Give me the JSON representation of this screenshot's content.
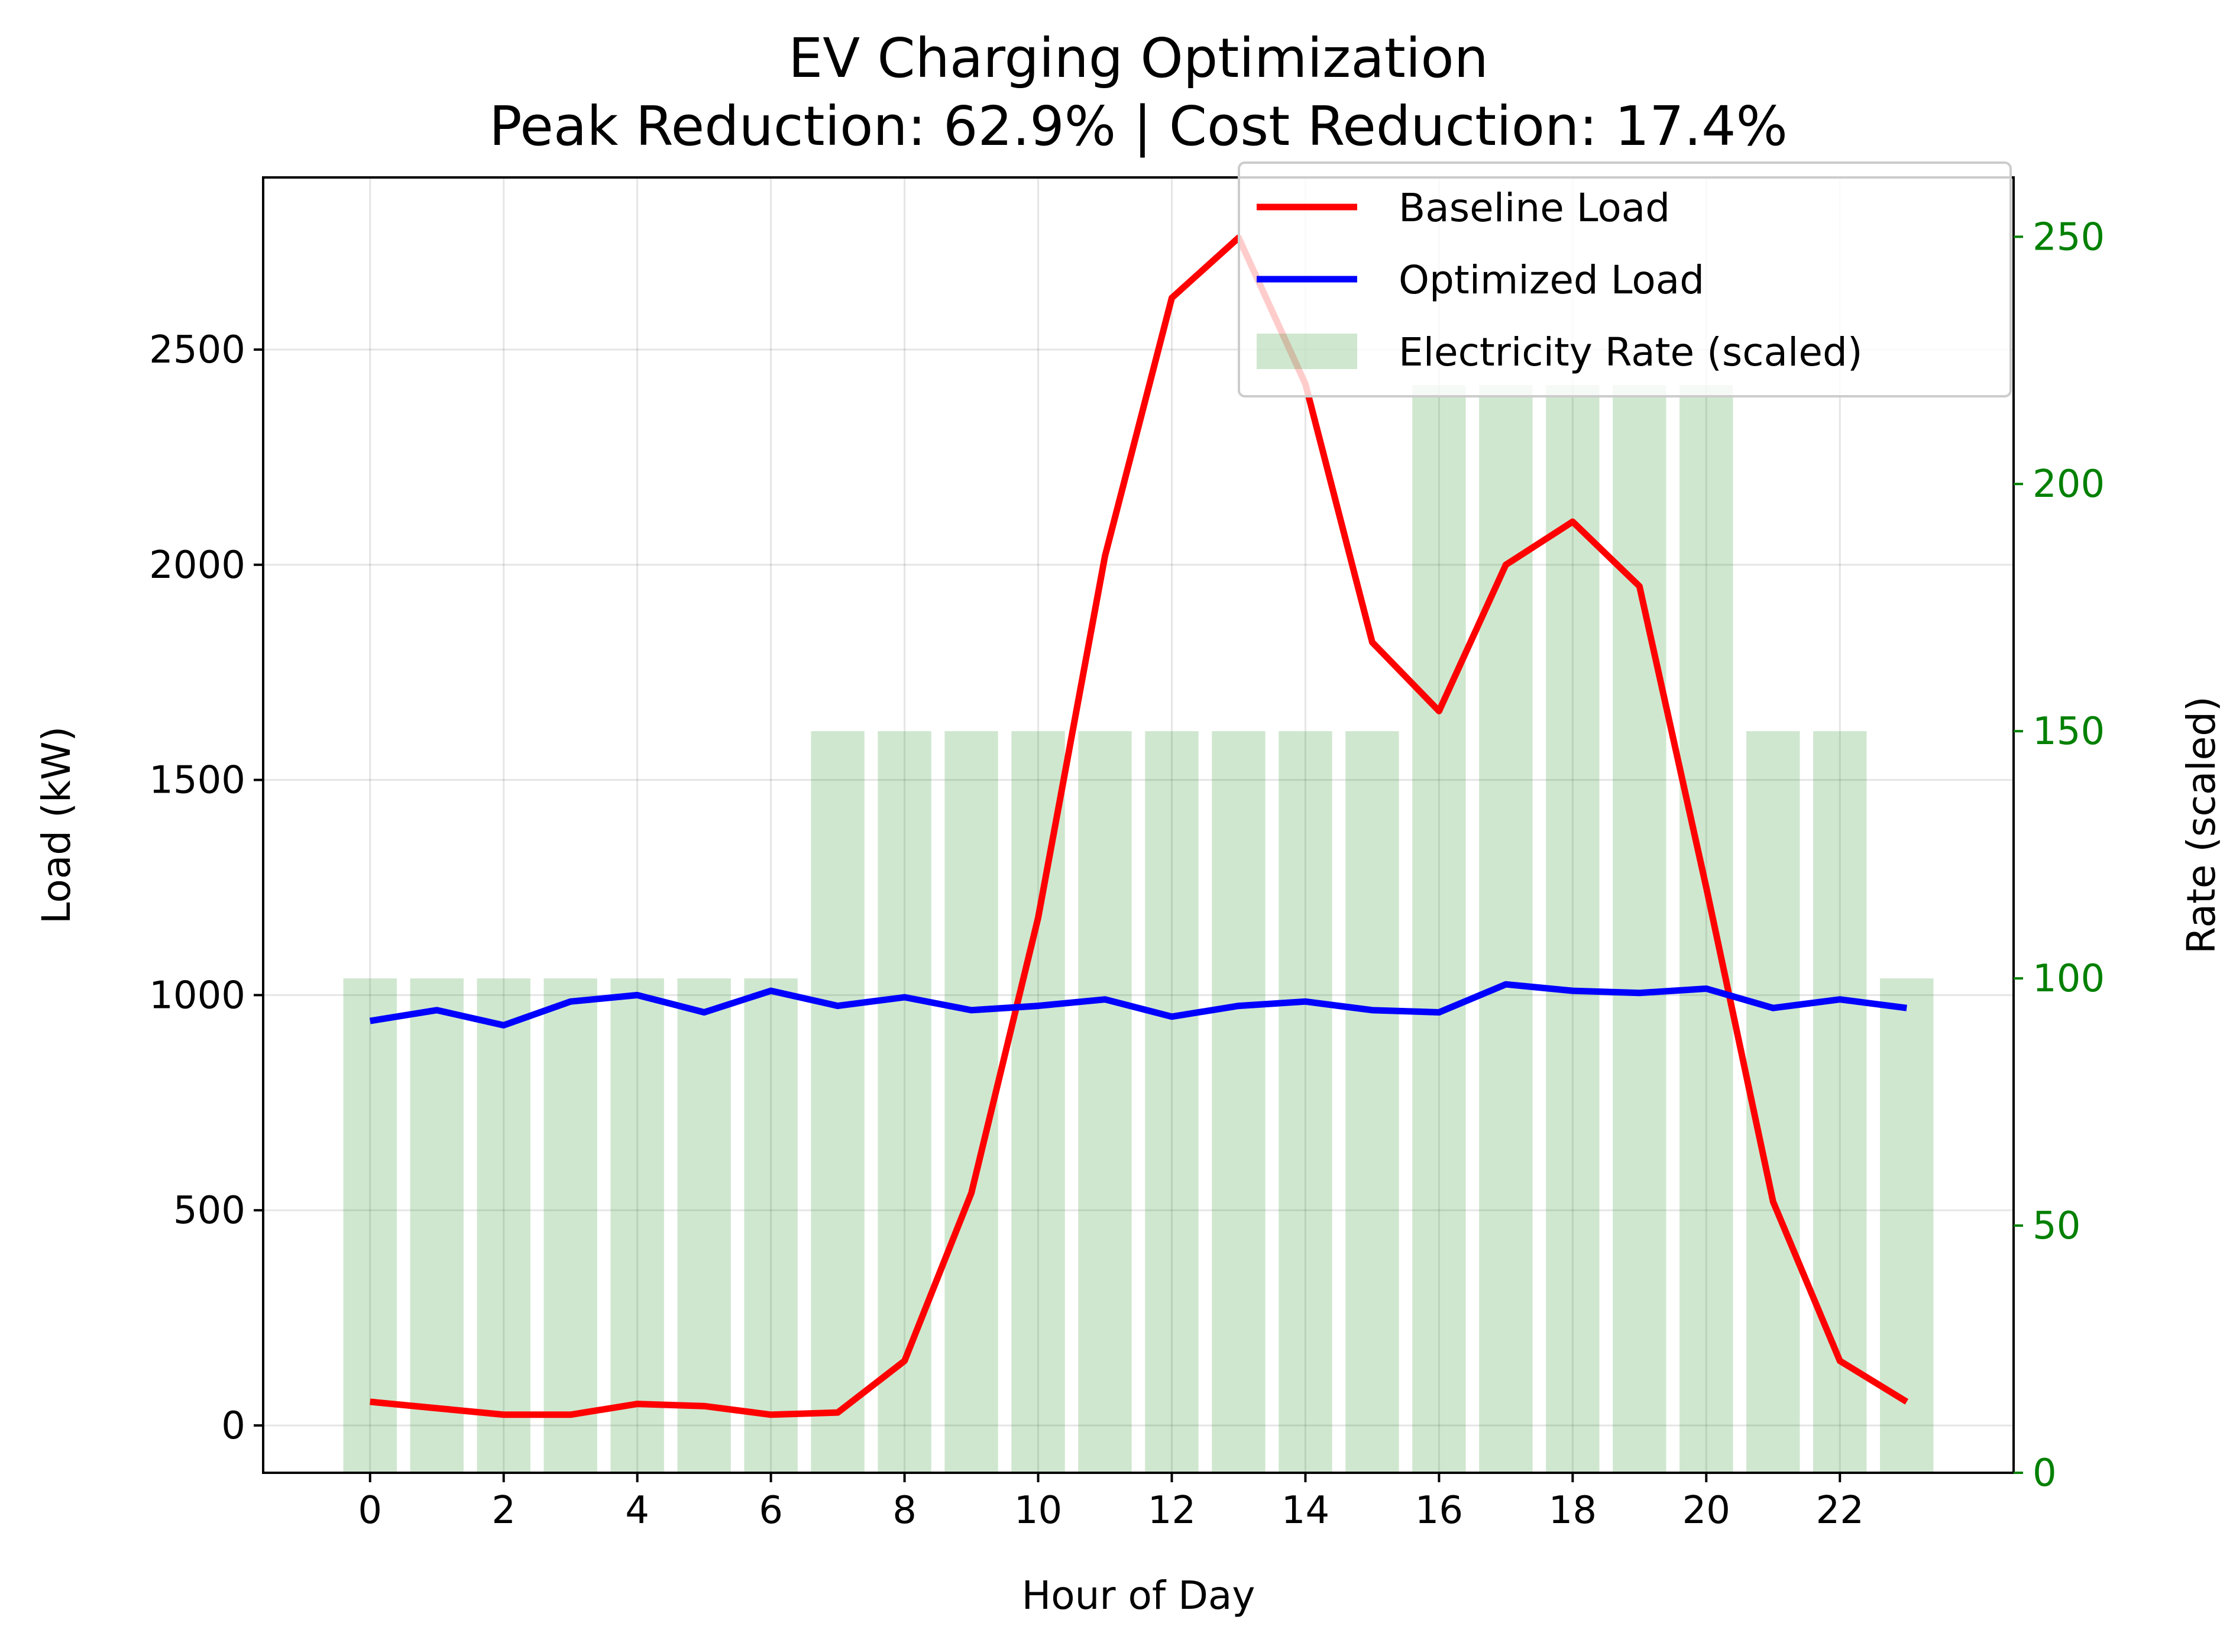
{
  "chart_data": {
    "type": "line",
    "title": "EV Charging Optimization",
    "subtitle": "Peak Reduction: 62.9% | Cost Reduction: 17.4%",
    "xlabel": "Hour of Day",
    "ylabel": "Load (kW)",
    "y2label": "Rate (scaled)",
    "x": [
      0,
      1,
      2,
      3,
      4,
      5,
      6,
      7,
      8,
      9,
      10,
      11,
      12,
      13,
      14,
      15,
      16,
      17,
      18,
      19,
      20,
      21,
      22,
      23
    ],
    "xlim": [
      -1.6,
      24.6
    ],
    "ylim": [
      -110,
      2900
    ],
    "y2lim": [
      0,
      262
    ],
    "xticks": [
      0,
      2,
      4,
      6,
      8,
      10,
      12,
      14,
      16,
      18,
      20,
      22
    ],
    "yticks": [
      0,
      500,
      1000,
      1500,
      2000,
      2500
    ],
    "y2ticks": [
      0,
      50,
      100,
      150,
      200,
      250
    ],
    "grid": true,
    "legend_position": "top-right",
    "series": [
      {
        "name": "Baseline Load",
        "kind": "line",
        "axis": "left",
        "color": "#ff0000",
        "values": [
          55,
          40,
          25,
          25,
          50,
          45,
          25,
          30,
          150,
          540,
          1180,
          2020,
          2620,
          2760,
          2420,
          1820,
          1660,
          2000,
          2100,
          1950,
          1250,
          520,
          150,
          55
        ]
      },
      {
        "name": "Optimized Load",
        "kind": "line",
        "axis": "left",
        "color": "#0000ff",
        "values": [
          940,
          965,
          930,
          985,
          1000,
          960,
          1010,
          975,
          995,
          965,
          975,
          990,
          950,
          975,
          985,
          965,
          960,
          1025,
          1010,
          1005,
          1015,
          970,
          990,
          970
        ]
      },
      {
        "name": "Electricity Rate (scaled)",
        "kind": "bar",
        "axis": "right",
        "color": "#008000",
        "opacity": 0.19,
        "values": [
          100,
          100,
          100,
          100,
          100,
          100,
          100,
          150,
          150,
          150,
          150,
          150,
          150,
          150,
          150,
          150,
          220,
          220,
          220,
          220,
          220,
          150,
          150,
          100
        ]
      }
    ],
    "colors": {
      "right_axis": "#008000"
    }
  }
}
